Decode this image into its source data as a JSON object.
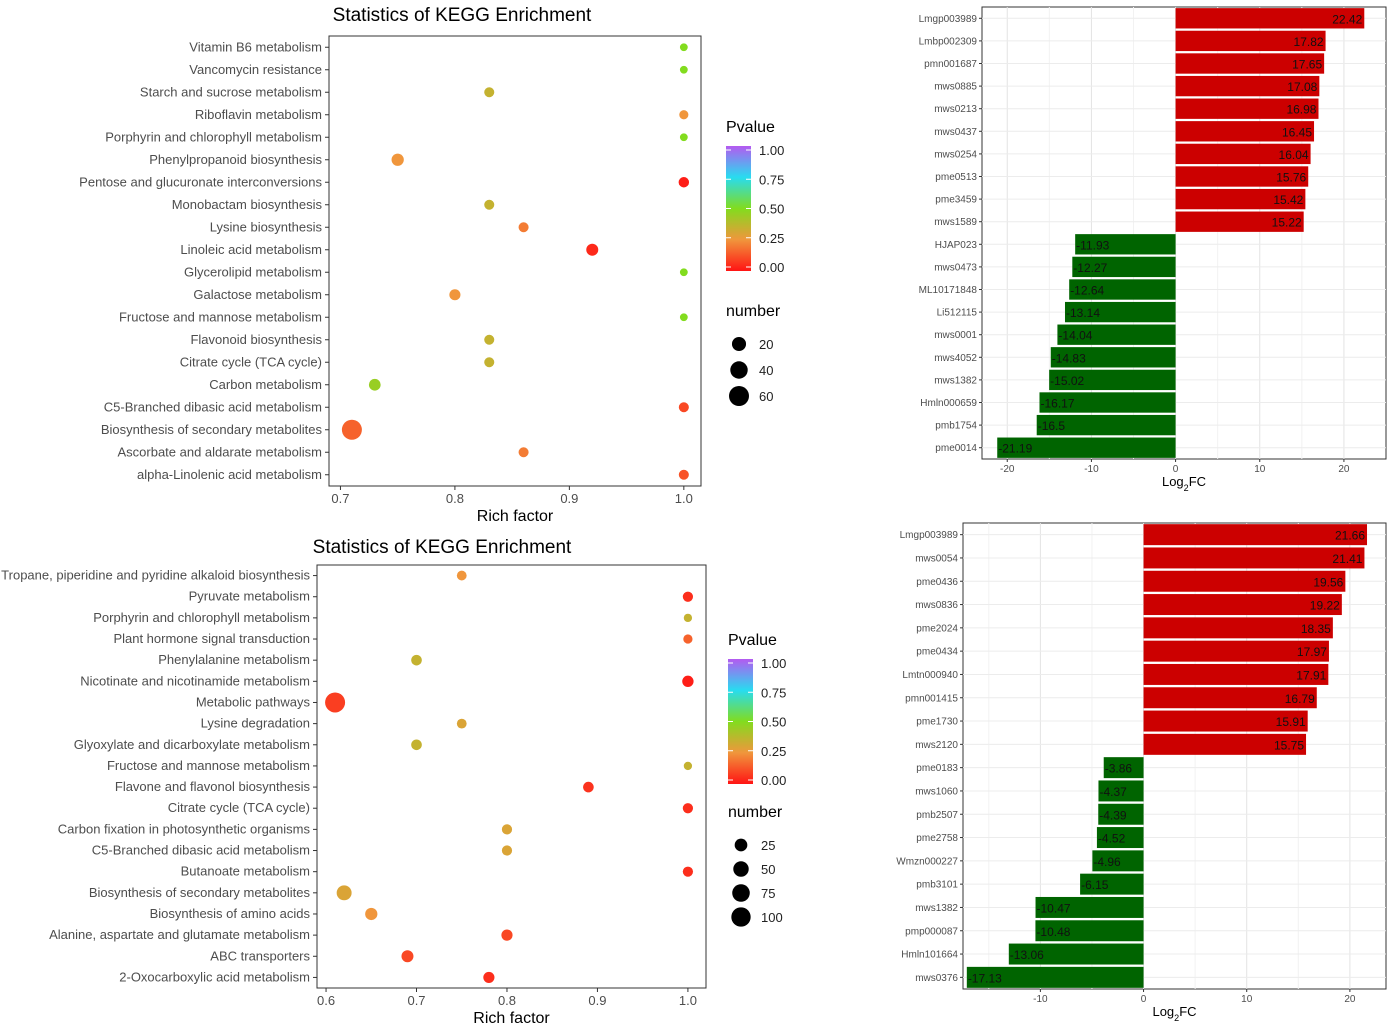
{
  "chart_data": [
    {
      "type": "scatter",
      "title": "Statistics of KEGG Enrichment",
      "xlabel": "Rich factor",
      "xlim": [
        0.69,
        1.015
      ],
      "xticks": [
        "0.7",
        "0.8",
        "0.9",
        "1.0"
      ],
      "categories": [
        "Vitamin B6 metabolism",
        "Vancomycin resistance",
        "Starch and sucrose metabolism",
        "Riboflavin metabolism",
        "Porphyrin and chlorophyll metabolism",
        "Phenylpropanoid biosynthesis",
        "Pentose and glucuronate interconversions",
        "Monobactam biosynthesis",
        "Lysine biosynthesis",
        "Linoleic acid metabolism",
        "Glycerolipid metabolism",
        "Galactose metabolism",
        "Fructose and mannose metabolism",
        "Flavonoid biosynthesis",
        "Citrate cycle (TCA cycle)",
        "Carbon metabolism",
        "C5-Branched dibasic acid metabolism",
        "Biosynthesis of secondary metabolites",
        "Ascorbate and aldarate metabolism",
        "alpha-Linolenic acid metabolism"
      ],
      "x": [
        1.0,
        1.0,
        0.83,
        1.0,
        1.0,
        0.75,
        1.0,
        0.83,
        0.86,
        0.92,
        1.0,
        0.8,
        1.0,
        0.83,
        0.83,
        0.73,
        1.0,
        0.71,
        0.86,
        1.0
      ],
      "pvalue": [
        0.5,
        0.5,
        0.35,
        0.25,
        0.5,
        0.25,
        0.02,
        0.35,
        0.2,
        0.04,
        0.5,
        0.25,
        0.5,
        0.35,
        0.35,
        0.45,
        0.1,
        0.15,
        0.2,
        0.12
      ],
      "number": [
        1,
        1,
        5,
        3,
        1,
        12,
        6,
        5,
        5,
        11,
        1,
        8,
        1,
        5,
        5,
        10,
        5,
        60,
        5,
        5
      ],
      "legend_pvalue_title": "Pvalue",
      "legend_pvalue_ticks": [
        "1.00",
        "0.75",
        "0.50",
        "0.25",
        "0.00"
      ],
      "legend_number_title": "number",
      "legend_number_labels": [
        "20",
        "40",
        "60"
      ],
      "legend_number_values": [
        20,
        40,
        60
      ],
      "size_max": 60
    },
    {
      "type": "bar",
      "orientation": "horizontal",
      "xlabel": "Log2FC",
      "xlim": [
        -23,
        25
      ],
      "xticks": [
        -20,
        -10,
        0,
        10,
        20
      ],
      "categories": [
        "Lmgp003989",
        "Lmbp002309",
        "pmn001687",
        "mws0885",
        "mws0213",
        "mws0437",
        "mws0254",
        "pme0513",
        "pme3459",
        "mws1589",
        "HJAP023",
        "mws0473",
        "ML10171848",
        "Li512115",
        "mws0001",
        "mws4052",
        "mws1382",
        "Hmln000659",
        "pmb1754",
        "pme0014"
      ],
      "values": [
        22.42,
        17.82,
        17.65,
        17.08,
        16.98,
        16.45,
        16.04,
        15.76,
        15.42,
        15.22,
        -11.93,
        -12.27,
        -12.64,
        -13.14,
        -14.04,
        -14.83,
        -15.02,
        -16.17,
        -16.5,
        -21.19
      ],
      "colors": {
        "positive": "#cc0000",
        "negative": "#006400"
      }
    },
    {
      "type": "scatter",
      "title": "Statistics of KEGG Enrichment",
      "xlabel": "Rich factor",
      "xlim": [
        0.59,
        1.02
      ],
      "xticks": [
        "0.6",
        "0.7",
        "0.8",
        "0.9",
        "1.0"
      ],
      "categories": [
        "Tropane, piperidine and pyridine alkaloid biosynthesis",
        "Pyruvate metabolism",
        "Porphyrin and chlorophyll metabolism",
        "Plant hormone signal transduction",
        "Phenylalanine metabolism",
        "Nicotinate and nicotinamide metabolism",
        "Metabolic pathways",
        "Lysine degradation",
        "Glyoxylate and dicarboxylate metabolism",
        "Fructose and mannose metabolism",
        "Flavone and flavonol biosynthesis",
        "Citrate cycle (TCA cycle)",
        "Carbon fixation in photosynthetic organisms",
        "C5-Branched dibasic acid metabolism",
        "Butanoate metabolism",
        "Biosynthesis of secondary metabolites",
        "Biosynthesis of amino acids",
        "Alanine, aspartate and glutamate metabolism",
        "ABC transporters",
        "2-Oxocarboxylic acid metabolism"
      ],
      "x": [
        0.75,
        1.0,
        1.0,
        1.0,
        0.7,
        1.0,
        0.61,
        0.75,
        0.7,
        1.0,
        0.89,
        1.0,
        0.8,
        0.8,
        1.0,
        0.62,
        0.65,
        0.8,
        0.69,
        0.78
      ],
      "pvalue": [
        0.25,
        0.05,
        0.35,
        0.15,
        0.35,
        0.02,
        0.08,
        0.3,
        0.35,
        0.35,
        0.06,
        0.05,
        0.3,
        0.3,
        0.05,
        0.3,
        0.25,
        0.1,
        0.1,
        0.05
      ],
      "number": [
        8,
        10,
        3,
        6,
        12,
        16,
        110,
        8,
        12,
        3,
        12,
        10,
        10,
        10,
        10,
        45,
        22,
        15,
        20,
        15
      ],
      "legend_pvalue_title": "Pvalue",
      "legend_pvalue_ticks": [
        "1.00",
        "0.75",
        "0.50",
        "0.25",
        "0.00"
      ],
      "legend_number_title": "number",
      "legend_number_labels": [
        "25",
        "50",
        "75",
        "100"
      ],
      "legend_number_values": [
        25,
        50,
        75,
        100
      ],
      "size_max": 110
    },
    {
      "type": "bar",
      "orientation": "horizontal",
      "xlabel": "Log2FC",
      "xlim": [
        -17.5,
        23.5
      ],
      "xticks": [
        -10,
        0,
        10,
        20
      ],
      "categories": [
        "Lmgp003989",
        "mws0054",
        "pme0436",
        "mws0836",
        "pme2024",
        "pme0434",
        "Lmtn000940",
        "pmn001415",
        "pme1730",
        "mws2120",
        "pme0183",
        "mws1060",
        "pmb2507",
        "pme2758",
        "Wmzn000227",
        "pmb3101",
        "mws1382",
        "pmp000087",
        "Hmln101664",
        "mws0376"
      ],
      "values": [
        21.66,
        21.41,
        19.56,
        19.22,
        18.35,
        17.97,
        17.91,
        16.79,
        15.91,
        15.75,
        -3.86,
        -4.37,
        -4.39,
        -4.52,
        -4.96,
        -6.15,
        -10.47,
        -10.48,
        -13.06,
        -17.13
      ],
      "colors": {
        "positive": "#cc0000",
        "negative": "#006400"
      }
    }
  ]
}
